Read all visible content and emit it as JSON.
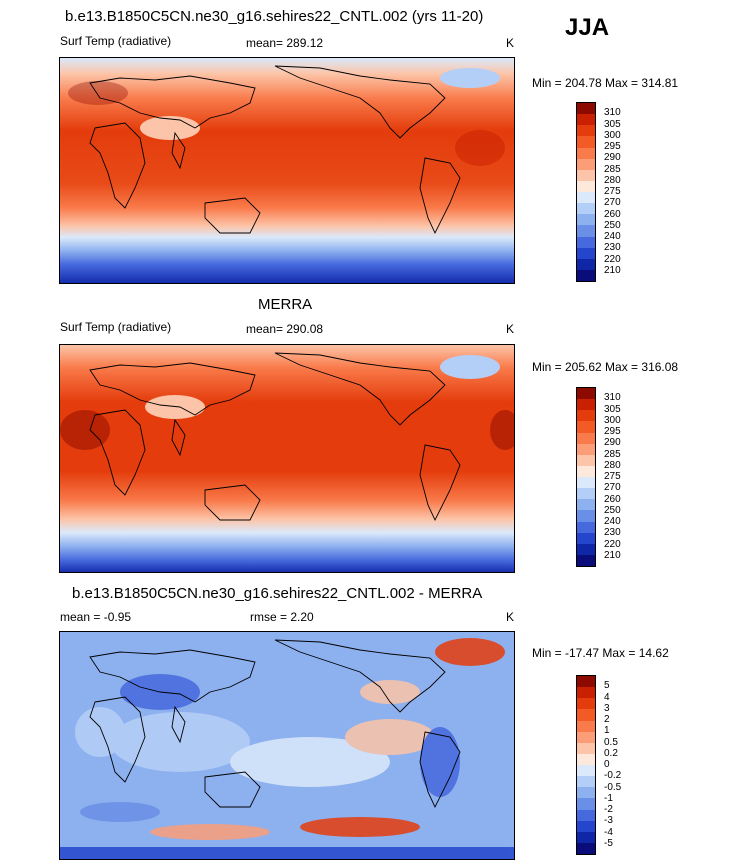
{
  "season": "JJA",
  "panels": [
    {
      "title": "b.e13.B1850C5CN.ne30_g16.sehires22_CNTL.002 (yrs 11-20)",
      "left_label": "Surf Temp (radiative)",
      "center_label": "mean= 289.12",
      "units": "K",
      "minmax": "Min = 204.78 Max = 314.81"
    },
    {
      "title": "MERRA",
      "left_label": "Surf Temp (radiative)",
      "center_label": "mean= 290.08",
      "units": "K",
      "minmax": "Min = 205.62 Max = 316.08"
    },
    {
      "title": "b.e13.B1850C5CN.ne30_g16.sehires22_CNTL.002 - MERRA",
      "left_label": "mean =  -0.95",
      "center_label": "rmse =   2.20",
      "units": "K",
      "minmax": "Min = -17.47 Max =  14.62"
    }
  ],
  "colorbar_abs": {
    "labels": [
      "310",
      "305",
      "300",
      "295",
      "290",
      "285",
      "280",
      "275",
      "270",
      "260",
      "250",
      "240",
      "230",
      "220",
      "210"
    ],
    "colors": [
      "#8c0a00",
      "#c82000",
      "#e43c0c",
      "#f25a26",
      "#f97a4a",
      "#fb9e78",
      "#fcc4a8",
      "#fde8dc",
      "#dbe9fb",
      "#b4cff7",
      "#8db0ef",
      "#6a8fe6",
      "#4669dd",
      "#2446cc",
      "#0f26a6",
      "#0a0c7a"
    ]
  },
  "colorbar_diff": {
    "labels": [
      "5",
      "4",
      "3",
      "2",
      "1",
      "0.5",
      "0.2",
      "0",
      "-0.2",
      "-0.5",
      "-1",
      "-2",
      "-3",
      "-4",
      "-5"
    ],
    "colors": [
      "#8c0a00",
      "#c82000",
      "#e43c0c",
      "#f25a26",
      "#f97a4a",
      "#fb9e78",
      "#fcc4a8",
      "#fde8dc",
      "#dbe9fb",
      "#b4cff7",
      "#8db0ef",
      "#6a8fe6",
      "#4669dd",
      "#2446cc",
      "#0f26a6",
      "#0a0c7a"
    ]
  }
}
